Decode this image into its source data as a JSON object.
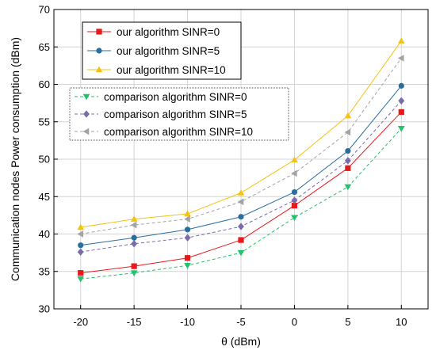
{
  "chart_data": {
    "type": "line",
    "title": "",
    "xlabel": "θ (dBm)",
    "ylabel": "Communication nodes Power consumption (dBm)",
    "x": [
      -20,
      -15,
      -10,
      -5,
      0,
      5,
      10
    ],
    "xlim": [
      -22.5,
      12.5
    ],
    "ylim": [
      30,
      70
    ],
    "xticks": [
      -20,
      -15,
      -10,
      -5,
      0,
      5,
      10
    ],
    "yticks": [
      30,
      35,
      40,
      45,
      50,
      55,
      60,
      65,
      70
    ],
    "grid": true,
    "series": [
      {
        "name": "our algorithm SINR=0",
        "color": "#e8191b",
        "marker": "square",
        "dash": "solid",
        "values": [
          34.8,
          35.7,
          36.8,
          39.2,
          43.8,
          48.8,
          56.3
        ]
      },
      {
        "name": "our algorithm SINR=5",
        "color": "#2a6e9e",
        "marker": "circle",
        "dash": "solid",
        "values": [
          38.5,
          39.5,
          40.6,
          42.3,
          45.6,
          51.1,
          59.8
        ]
      },
      {
        "name": "our algorithm SINR=10",
        "color": "#f3c215",
        "marker": "triangle-up",
        "dash": "solid",
        "values": [
          40.9,
          42.0,
          42.7,
          45.5,
          49.9,
          55.8,
          65.8
        ]
      },
      {
        "name": "comparison algorithm SINR=0",
        "color": "#22c16a",
        "marker": "triangle-down",
        "dash": "dashed",
        "values": [
          34.0,
          34.8,
          35.8,
          37.5,
          42.2,
          46.3,
          54.1
        ]
      },
      {
        "name": "comparison algorithm SINR=5",
        "color": "#7a6bad",
        "marker": "diamond",
        "dash": "dashed",
        "values": [
          37.6,
          38.7,
          39.5,
          41.0,
          44.5,
          49.8,
          57.8
        ]
      },
      {
        "name": "comparison algorithm SINR=10",
        "color": "#a3a3a3",
        "marker": "triangle-left",
        "dash": "dashed",
        "values": [
          40.0,
          41.2,
          42.0,
          44.3,
          48.1,
          53.6,
          63.5
        ]
      }
    ],
    "legends": [
      {
        "position": "top-left",
        "series": [
          0,
          1,
          2
        ]
      },
      {
        "position": "upper-left",
        "series": [
          3,
          4,
          5
        ]
      }
    ]
  }
}
